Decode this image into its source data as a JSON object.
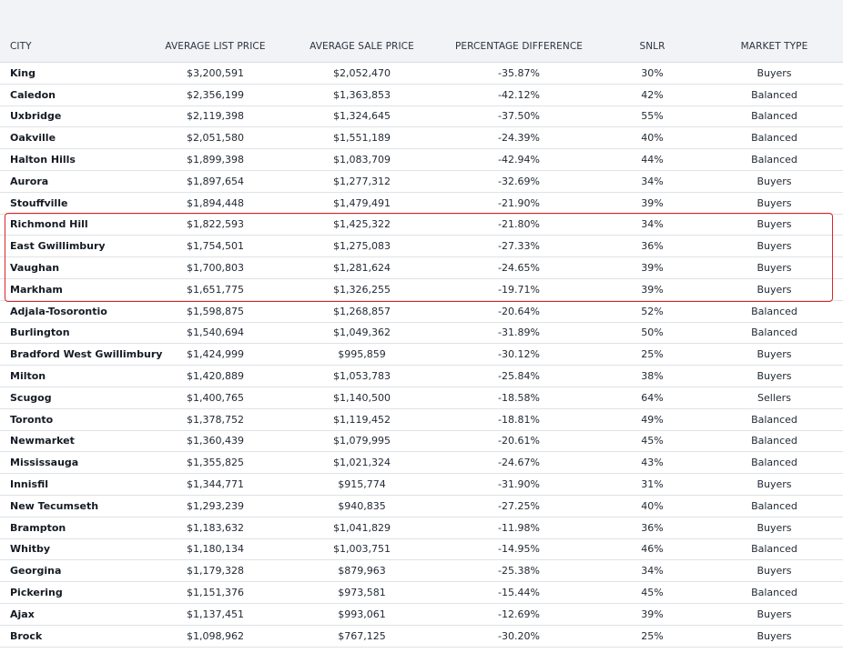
{
  "table": {
    "headers": [
      "CITY",
      "AVERAGE LIST PRICE",
      "AVERAGE SALE PRICE",
      "PERCENTAGE DIFFERENCE",
      "SNLR",
      "MARKET TYPE"
    ],
    "rows": [
      {
        "city": "King",
        "list": "$3,200,591",
        "sale": "$2,052,470",
        "diff": "-35.87%",
        "snlr": "30%",
        "market": "Buyers"
      },
      {
        "city": "Caledon",
        "list": "$2,356,199",
        "sale": "$1,363,853",
        "diff": "-42.12%",
        "snlr": "42%",
        "market": "Balanced"
      },
      {
        "city": "Uxbridge",
        "list": "$2,119,398",
        "sale": "$1,324,645",
        "diff": "-37.50%",
        "snlr": "55%",
        "market": "Balanced"
      },
      {
        "city": "Oakville",
        "list": "$2,051,580",
        "sale": "$1,551,189",
        "diff": "-24.39%",
        "snlr": "40%",
        "market": "Balanced"
      },
      {
        "city": "Halton Hills",
        "list": "$1,899,398",
        "sale": "$1,083,709",
        "diff": "-42.94%",
        "snlr": "44%",
        "market": "Balanced"
      },
      {
        "city": "Aurora",
        "list": "$1,897,654",
        "sale": "$1,277,312",
        "diff": "-32.69%",
        "snlr": "34%",
        "market": "Buyers"
      },
      {
        "city": "Stouffville",
        "list": "$1,894,448",
        "sale": "$1,479,491",
        "diff": "-21.90%",
        "snlr": "39%",
        "market": "Buyers"
      },
      {
        "city": "Richmond Hill",
        "list": "$1,822,593",
        "sale": "$1,425,322",
        "diff": "-21.80%",
        "snlr": "34%",
        "market": "Buyers"
      },
      {
        "city": "East Gwillimbury",
        "list": "$1,754,501",
        "sale": "$1,275,083",
        "diff": "-27.33%",
        "snlr": "36%",
        "market": "Buyers"
      },
      {
        "city": "Vaughan",
        "list": "$1,700,803",
        "sale": "$1,281,624",
        "diff": "-24.65%",
        "snlr": "39%",
        "market": "Buyers"
      },
      {
        "city": "Markham",
        "list": "$1,651,775",
        "sale": "$1,326,255",
        "diff": "-19.71%",
        "snlr": "39%",
        "market": "Buyers"
      },
      {
        "city": "Adjala-Tosorontio",
        "list": "$1,598,875",
        "sale": "$1,268,857",
        "diff": "-20.64%",
        "snlr": "52%",
        "market": "Balanced"
      },
      {
        "city": "Burlington",
        "list": "$1,540,694",
        "sale": "$1,049,362",
        "diff": "-31.89%",
        "snlr": "50%",
        "market": "Balanced"
      },
      {
        "city": "Bradford West Gwillimbury",
        "list": "$1,424,999",
        "sale": "$995,859",
        "diff": "-30.12%",
        "snlr": "25%",
        "market": "Buyers"
      },
      {
        "city": "Milton",
        "list": "$1,420,889",
        "sale": "$1,053,783",
        "diff": "-25.84%",
        "snlr": "38%",
        "market": "Buyers"
      },
      {
        "city": "Scugog",
        "list": "$1,400,765",
        "sale": "$1,140,500",
        "diff": "-18.58%",
        "snlr": "64%",
        "market": "Sellers"
      },
      {
        "city": "Toronto",
        "list": "$1,378,752",
        "sale": "$1,119,452",
        "diff": "-18.81%",
        "snlr": "49%",
        "market": "Balanced"
      },
      {
        "city": "Newmarket",
        "list": "$1,360,439",
        "sale": "$1,079,995",
        "diff": "-20.61%",
        "snlr": "45%",
        "market": "Balanced"
      },
      {
        "city": "Mississauga",
        "list": "$1,355,825",
        "sale": "$1,021,324",
        "diff": "-24.67%",
        "snlr": "43%",
        "market": "Balanced"
      },
      {
        "city": "Innisfil",
        "list": "$1,344,771",
        "sale": "$915,774",
        "diff": "-31.90%",
        "snlr": "31%",
        "market": "Buyers"
      },
      {
        "city": "New Tecumseth",
        "list": "$1,293,239",
        "sale": "$940,835",
        "diff": "-27.25%",
        "snlr": "40%",
        "market": "Balanced"
      },
      {
        "city": "Brampton",
        "list": "$1,183,632",
        "sale": "$1,041,829",
        "diff": "-11.98%",
        "snlr": "36%",
        "market": "Buyers"
      },
      {
        "city": "Whitby",
        "list": "$1,180,134",
        "sale": "$1,003,751",
        "diff": "-14.95%",
        "snlr": "46%",
        "market": "Balanced"
      },
      {
        "city": "Georgina",
        "list": "$1,179,328",
        "sale": "$879,963",
        "diff": "-25.38%",
        "snlr": "34%",
        "market": "Buyers"
      },
      {
        "city": "Pickering",
        "list": "$1,151,376",
        "sale": "$973,581",
        "diff": "-15.44%",
        "snlr": "45%",
        "market": "Balanced"
      },
      {
        "city": "Ajax",
        "list": "$1,137,451",
        "sale": "$993,061",
        "diff": "-12.69%",
        "snlr": "39%",
        "market": "Buyers"
      },
      {
        "city": "Brock",
        "list": "$1,098,962",
        "sale": "$767,125",
        "diff": "-30.20%",
        "snlr": "25%",
        "market": "Buyers"
      }
    ],
    "highlighted_cities": [
      "Richmond Hill",
      "East Gwillimbury",
      "Vaughan",
      "Markham"
    ],
    "highlight_color": "#e02424",
    "header_bg": "#f1f3f6"
  },
  "chart_data": {
    "type": "table",
    "columns": [
      "CITY",
      "AVERAGE LIST PRICE",
      "AVERAGE SALE PRICE",
      "PERCENTAGE DIFFERENCE",
      "SNLR",
      "MARKET TYPE"
    ],
    "highlighted_rows": [
      "Richmond Hill",
      "East Gwillimbury",
      "Vaughan",
      "Markham"
    ]
  }
}
